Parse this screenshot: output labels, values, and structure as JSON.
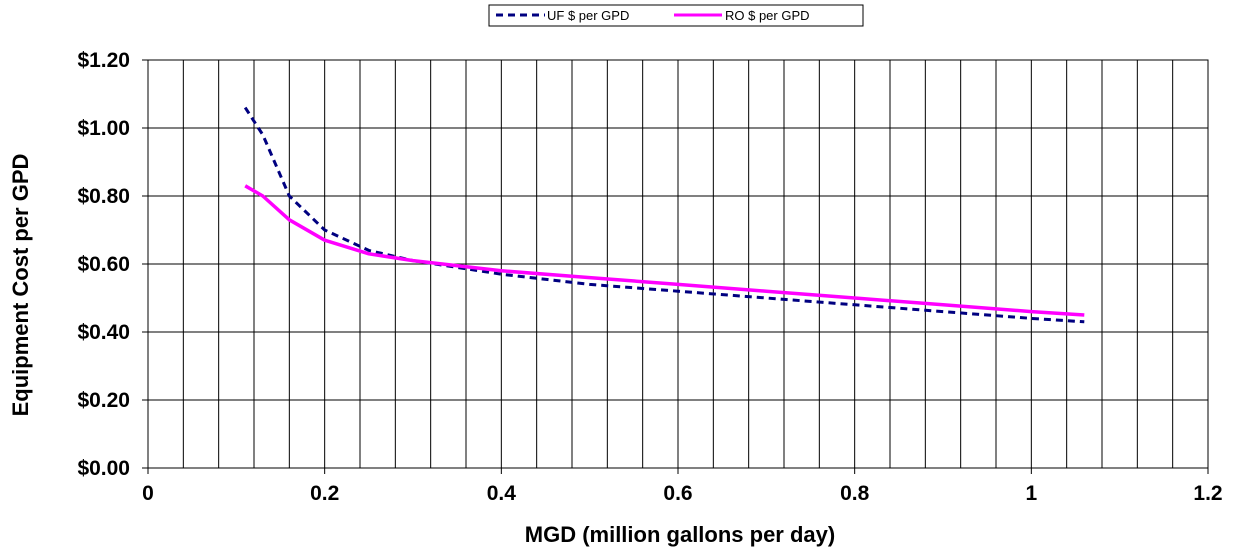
{
  "chart_data": {
    "type": "line",
    "title": "",
    "xlabel": "MGD (million gallons per day)",
    "ylabel": "Equipment Cost per GPD",
    "xlim": [
      0,
      1.2
    ],
    "ylim": [
      0,
      1.2
    ],
    "x_ticks": [
      "0",
      "0.2",
      "0.4",
      "0.6",
      "0.8",
      "1",
      "1.2"
    ],
    "y_ticks": [
      "$0.00",
      "$0.20",
      "$0.40",
      "$0.60",
      "$0.80",
      "$1.00",
      "$1.20"
    ],
    "grid": true,
    "legend_position": "top-center",
    "series": [
      {
        "name": "UF $ per GPD",
        "color": "#000080",
        "style": "dashed",
        "x": [
          0.11,
          0.13,
          0.16,
          0.2,
          0.25,
          0.3,
          0.4,
          0.5,
          0.6,
          0.7,
          0.8,
          0.9,
          1.0,
          1.06
        ],
        "y": [
          1.06,
          0.98,
          0.8,
          0.7,
          0.64,
          0.61,
          0.57,
          0.54,
          0.52,
          0.5,
          0.48,
          0.46,
          0.44,
          0.43
        ]
      },
      {
        "name": "RO $ per GPD",
        "color": "#FF00FF",
        "style": "solid",
        "x": [
          0.11,
          0.13,
          0.16,
          0.2,
          0.25,
          0.3,
          0.4,
          0.5,
          0.6,
          0.7,
          0.8,
          0.9,
          1.0,
          1.06
        ],
        "y": [
          0.83,
          0.8,
          0.73,
          0.67,
          0.63,
          0.61,
          0.58,
          0.56,
          0.54,
          0.52,
          0.5,
          0.48,
          0.46,
          0.45
        ]
      }
    ]
  }
}
